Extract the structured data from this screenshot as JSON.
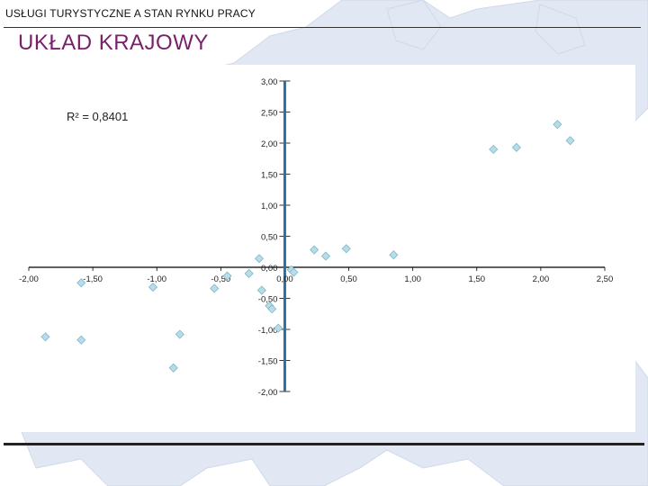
{
  "header": {
    "text": "USŁUGI TURYSTYCZNE A STAN RYNKU PRACY"
  },
  "title": "UKŁAD KRAJOWY",
  "chart_data": {
    "type": "scatter",
    "title": "",
    "xlabel": "",
    "ylabel": "",
    "xlim": [
      -2.0,
      2.5
    ],
    "ylim": [
      -2.0,
      3.0
    ],
    "x_ticks": [
      -2.0,
      -1.5,
      -1.0,
      -0.5,
      0.0,
      0.5,
      1.0,
      1.5,
      2.0,
      2.5
    ],
    "y_ticks": [
      3.0,
      2.5,
      2.0,
      1.5,
      1.0,
      0.5,
      0.0,
      -0.5,
      -1.0,
      -1.5,
      -2.0
    ],
    "x_tick_labels": [
      "-2,00",
      "-1,50",
      "-1,00",
      "-0,50",
      "0,00",
      "0,50",
      "1,00",
      "1,50",
      "2,00",
      "2,50"
    ],
    "y_tick_labels": [
      "3,00",
      "2,50",
      "2,00",
      "1,50",
      "1,00",
      "0,50",
      "0,00",
      "-0,50",
      "-1,00",
      "-1,50",
      "-2,00"
    ],
    "annotation": "R² = 0,8401",
    "grid": true,
    "marker_color": "#b9dde8",
    "marker_edge_color": "#7fb6c8",
    "axis_color": "#2f6f9f",
    "points": [
      {
        "x": -1.59,
        "y": -0.25
      },
      {
        "x": -1.87,
        "y": -1.12
      },
      {
        "x": -1.59,
        "y": -1.17
      },
      {
        "x": -1.03,
        "y": -0.32
      },
      {
        "x": -0.82,
        "y": -1.08
      },
      {
        "x": -0.87,
        "y": -1.62
      },
      {
        "x": -0.55,
        "y": -0.34
      },
      {
        "x": -0.45,
        "y": -0.14
      },
      {
        "x": -0.28,
        "y": -0.1
      },
      {
        "x": -0.2,
        "y": 0.14
      },
      {
        "x": -0.18,
        "y": -0.37
      },
      {
        "x": -0.12,
        "y": -0.62
      },
      {
        "x": -0.1,
        "y": -0.67
      },
      {
        "x": -0.05,
        "y": -0.98
      },
      {
        "x": 0.05,
        "y": -0.04
      },
      {
        "x": 0.07,
        "y": -0.08
      },
      {
        "x": 0.23,
        "y": 0.28
      },
      {
        "x": 0.32,
        "y": 0.18
      },
      {
        "x": 0.48,
        "y": 0.3
      },
      {
        "x": 0.85,
        "y": 0.2
      },
      {
        "x": 1.63,
        "y": 1.9
      },
      {
        "x": 1.81,
        "y": 1.93
      },
      {
        "x": 2.13,
        "y": 2.3
      },
      {
        "x": 2.23,
        "y": 2.04
      }
    ]
  }
}
